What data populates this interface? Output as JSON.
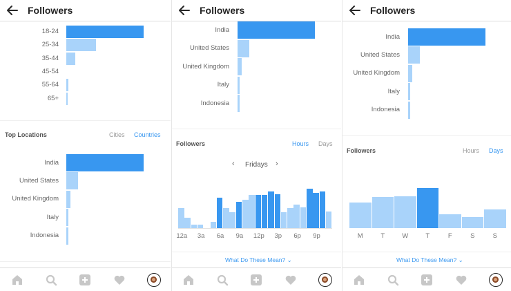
{
  "colors": {
    "accent": "#3897f0",
    "bar_light": "#a9d3fa",
    "text": "#262626"
  },
  "header": {
    "title": "Followers",
    "back_icon": "arrow-left-icon"
  },
  "age_ranges": {
    "categories": [
      "18-24",
      "25-34",
      "35-44",
      "45-54",
      "55-64",
      "65+"
    ],
    "values": [
      100,
      38,
      12,
      0,
      3,
      2
    ]
  },
  "top_locations": {
    "title": "Top Locations",
    "tabs": [
      {
        "label": "Cities",
        "active": false
      },
      {
        "label": "Countries",
        "active": true
      }
    ],
    "categories": [
      "India",
      "United States",
      "United Kingdom",
      "Italy",
      "Indonesia"
    ],
    "values": [
      100,
      15,
      5,
      3,
      3
    ]
  },
  "followers_section": {
    "title": "Followers",
    "hours_label": "Hours",
    "days_label": "Days",
    "day_selector": "Fridays"
  },
  "chart_data": [
    {
      "type": "bar",
      "name": "age-ranges",
      "categories": [
        "18-24",
        "25-34",
        "35-44",
        "45-54",
        "55-64",
        "65+"
      ],
      "values": [
        100,
        38,
        12,
        0,
        3,
        2
      ]
    },
    {
      "type": "bar",
      "name": "top-locations-countries",
      "categories": [
        "India",
        "United States",
        "United Kingdom",
        "Italy",
        "Indonesia"
      ],
      "values": [
        100,
        15,
        5,
        3,
        3
      ]
    },
    {
      "type": "bar",
      "name": "followers-by-hour-fridays",
      "categories": [
        "12a",
        "1a",
        "2a",
        "3a",
        "4a",
        "5a",
        "6a",
        "7a",
        "8a",
        "9a",
        "10a",
        "11a",
        "12p",
        "1p",
        "2p",
        "3p",
        "4p",
        "5p",
        "6p",
        "7p",
        "8p",
        "9p",
        "10p",
        "11p"
      ],
      "tick_labels": [
        "12a",
        "3a",
        "6a",
        "9a",
        "12p",
        "3p",
        "6p",
        "9p"
      ],
      "values": [
        50,
        25,
        8,
        8,
        0,
        15,
        75,
        50,
        40,
        65,
        70,
        82,
        82,
        82,
        92,
        85,
        40,
        50,
        58,
        52,
        98,
        88,
        92,
        42
      ],
      "highlighted": [
        6,
        9,
        12,
        13,
        14,
        15,
        20,
        21,
        22
      ]
    },
    {
      "type": "bar",
      "name": "followers-by-day",
      "categories": [
        "M",
        "T",
        "W",
        "T",
        "F",
        "S",
        "S"
      ],
      "values": [
        63,
        78,
        80,
        100,
        35,
        28,
        47
      ],
      "highlighted": [
        3
      ]
    }
  ],
  "help_link": "What Do These Mean?",
  "tabbar": [
    "home-icon",
    "search-icon",
    "add-post-icon",
    "heart-icon",
    "profile-avatar"
  ]
}
